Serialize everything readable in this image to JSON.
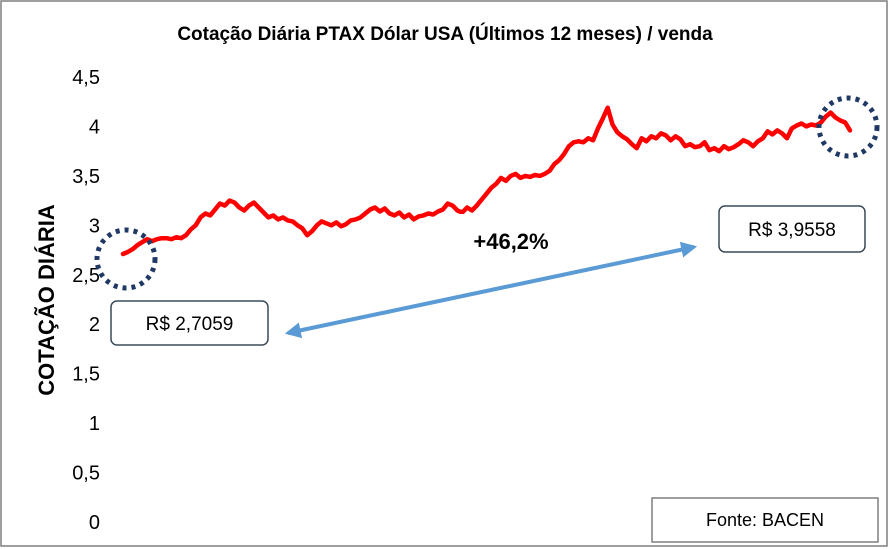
{
  "chart_data": {
    "type": "line",
    "title": "Cotação Diária PTAX Dólar USA (Últimos 12 meses) / venda",
    "ylabel": "COTAÇÃO DIÁRIA",
    "xlabel": "",
    "ylim": [
      0,
      4.5
    ],
    "yticks": [
      "0",
      "0,5",
      "1",
      "1,5",
      "2",
      "2,5",
      "3",
      "3,5",
      "4",
      "4,5"
    ],
    "grid": false,
    "legend": "none",
    "series": [
      {
        "color": "#ff0000",
        "values": [
          2.71,
          2.73,
          2.76,
          2.8,
          2.83,
          2.86,
          2.84,
          2.86,
          2.87,
          2.87,
          2.86,
          2.88,
          2.87,
          2.9,
          2.96,
          3.0,
          3.08,
          3.12,
          3.1,
          3.16,
          3.22,
          3.2,
          3.25,
          3.23,
          3.18,
          3.15,
          3.2,
          3.23,
          3.18,
          3.13,
          3.08,
          3.1,
          3.06,
          3.08,
          3.05,
          3.04,
          3.0,
          2.97,
          2.9,
          2.94,
          3.0,
          3.04,
          3.02,
          3.0,
          3.03,
          2.99,
          3.01,
          3.05,
          3.06,
          3.08,
          3.12,
          3.16,
          3.18,
          3.14,
          3.17,
          3.12,
          3.1,
          3.13,
          3.08,
          3.11,
          3.06,
          3.09,
          3.1,
          3.12,
          3.11,
          3.14,
          3.16,
          3.22,
          3.2,
          3.15,
          3.13,
          3.18,
          3.15,
          3.2,
          3.26,
          3.32,
          3.38,
          3.42,
          3.48,
          3.45,
          3.5,
          3.52,
          3.48,
          3.5,
          3.49,
          3.51,
          3.5,
          3.52,
          3.55,
          3.62,
          3.66,
          3.72,
          3.8,
          3.84,
          3.85,
          3.84,
          3.88,
          3.86,
          3.98,
          4.08,
          4.19,
          4.02,
          3.94,
          3.9,
          3.87,
          3.82,
          3.78,
          3.88,
          3.85,
          3.9,
          3.88,
          3.93,
          3.91,
          3.86,
          3.9,
          3.87,
          3.8,
          3.82,
          3.79,
          3.8,
          3.84,
          3.76,
          3.78,
          3.75,
          3.8,
          3.77,
          3.79,
          3.82,
          3.86,
          3.84,
          3.8,
          3.85,
          3.88,
          3.95,
          3.92,
          3.96,
          3.93,
          3.88,
          3.98,
          4.01,
          4.03,
          4.0,
          4.02,
          4.01,
          4.04,
          4.1,
          4.14,
          4.09,
          4.06,
          4.04,
          3.96
        ]
      }
    ],
    "annotations": {
      "start_value": "R$ 2,7059",
      "end_value": "R$ 3,9558",
      "change": "+46,2%",
      "source": "Fonte: BACEN"
    }
  },
  "colors": {
    "line": "#ff0000",
    "arrow": "#5b9bd5",
    "circle": "#1f3864",
    "callout_border": "#3a4a5a",
    "frame": "#7f7f7f"
  }
}
